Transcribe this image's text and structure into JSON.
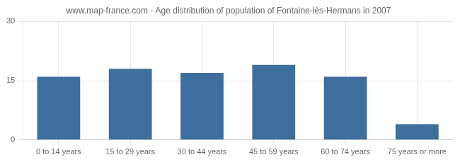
{
  "chart_data": {
    "type": "bar",
    "title": "www.map-france.com - Age distribution of population of Fontaine-lès-Hermans in 2007",
    "categories": [
      "0 to 14 years",
      "15 to 29 years",
      "30 to 44 years",
      "45 to 59 years",
      "60 to 74 years",
      "75 years or more"
    ],
    "values": [
      16,
      18,
      17,
      19,
      16,
      4
    ],
    "color": "#3d6e9e",
    "ylim": [
      0,
      30
    ],
    "yticks": [
      0,
      15,
      30
    ],
    "grid": true
  }
}
